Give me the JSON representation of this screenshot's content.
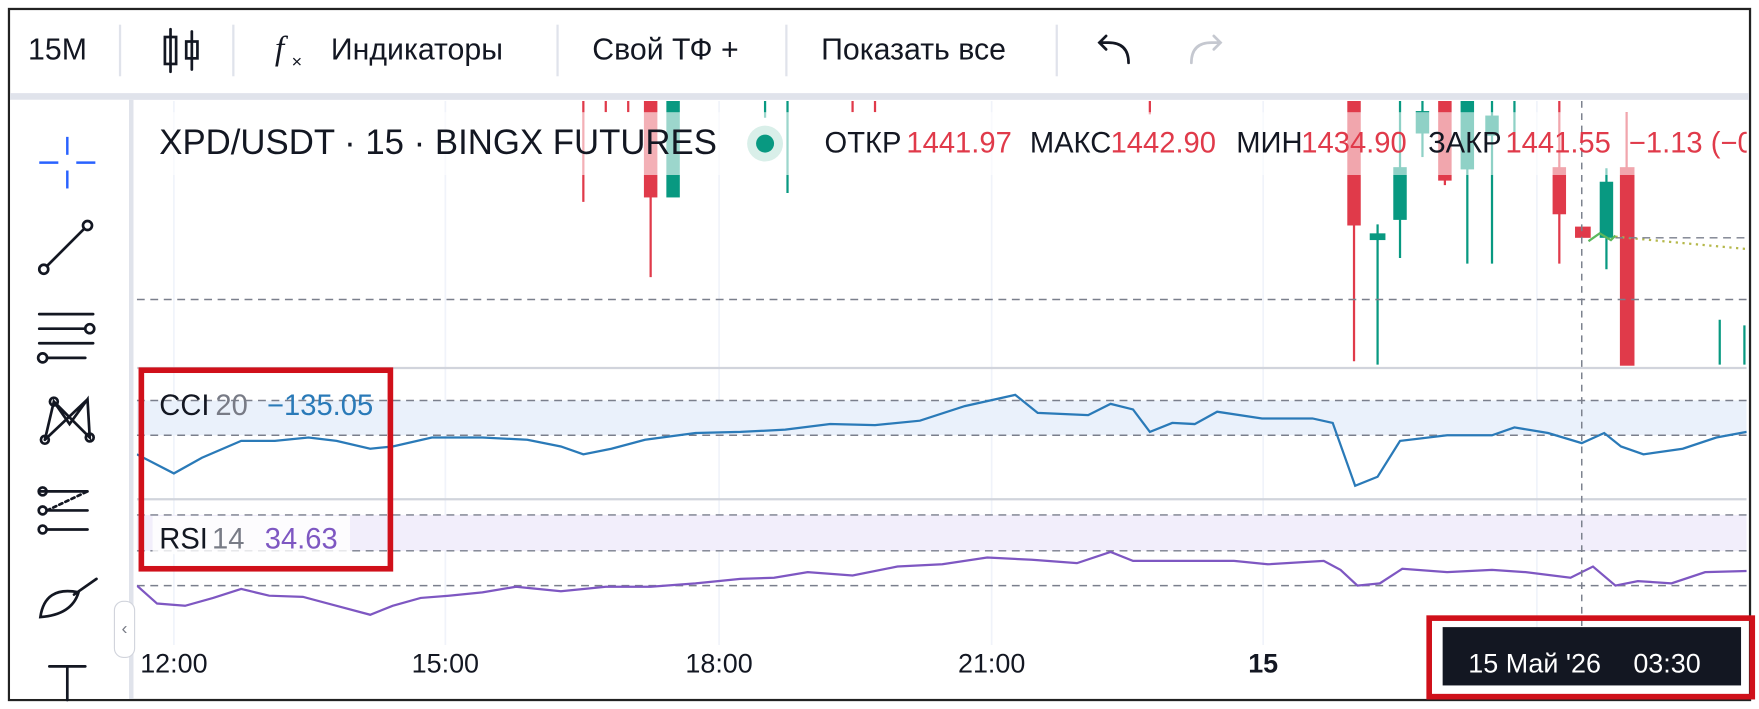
{
  "toolbar": {
    "interval": "15M",
    "indicators": "Индикаторы",
    "custom_tf": "Свой ТФ +",
    "show_all": "Показать все"
  },
  "legend": {
    "symbol": "XPD/USDT · 15 · BINGX FUTURES",
    "open_label": "ОТКР",
    "open": "1441.97",
    "high_label": "МАКС",
    "high": "1442.90",
    "low_label": "МИН",
    "low": "1434.90",
    "close_label": "ЗАКР",
    "close": "1441.55",
    "change": "−1.13 (−0"
  },
  "indicators": {
    "cci": {
      "name": "CCI",
      "length": "20",
      "value": "−135.05"
    },
    "rsi": {
      "name": "RSI",
      "length": "14",
      "value": "34.63"
    }
  },
  "time_axis": [
    "12:00",
    "15:00",
    "18:00",
    "21:00",
    "15"
  ],
  "crosshair": {
    "date": "15 Май '26",
    "time": "03:30"
  }
}
